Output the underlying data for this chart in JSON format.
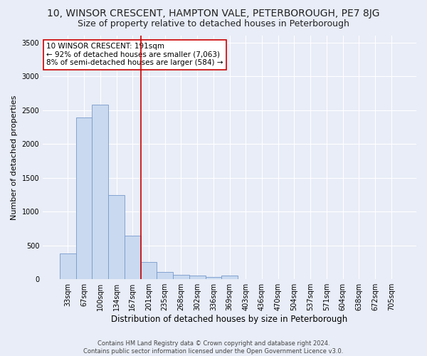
{
  "title": "10, WINSOR CRESCENT, HAMPTON VALE, PETERBOROUGH, PE7 8JG",
  "subtitle": "Size of property relative to detached houses in Peterborough",
  "xlabel": "Distribution of detached houses by size in Peterborough",
  "ylabel": "Number of detached properties",
  "footer_line1": "Contains HM Land Registry data © Crown copyright and database right 2024.",
  "footer_line2": "Contains public sector information licensed under the Open Government Licence v3.0.",
  "categories": [
    "33sqm",
    "67sqm",
    "100sqm",
    "134sqm",
    "167sqm",
    "201sqm",
    "235sqm",
    "268sqm",
    "302sqm",
    "336sqm",
    "369sqm",
    "403sqm",
    "436sqm",
    "470sqm",
    "504sqm",
    "537sqm",
    "571sqm",
    "604sqm",
    "638sqm",
    "672sqm",
    "705sqm"
  ],
  "values": [
    380,
    2390,
    2580,
    1240,
    640,
    250,
    105,
    65,
    60,
    35,
    55,
    0,
    0,
    0,
    0,
    0,
    0,
    0,
    0,
    0,
    0
  ],
  "bar_color": "#c9d9ef",
  "bar_edge_color": "#7799cc",
  "vline_color": "#cc0000",
  "vline_pos": 4.5,
  "annotation_line1": "10 WINSOR CRESCENT: 191sqm",
  "annotation_line2": "← 92% of detached houses are smaller (7,063)",
  "annotation_line3": "8% of semi-detached houses are larger (584) →",
  "annotation_box_facecolor": "#ffffff",
  "annotation_box_edgecolor": "#cc0000",
  "ylim": [
    0,
    3600
  ],
  "yticks": [
    0,
    500,
    1000,
    1500,
    2000,
    2500,
    3000,
    3500
  ],
  "bg_color": "#e8edf7",
  "plot_bg_color": "#e8edf7",
  "grid_color": "#ffffff",
  "title_fontsize": 10,
  "subtitle_fontsize": 9,
  "tick_fontsize": 7,
  "ylabel_fontsize": 8,
  "xlabel_fontsize": 8.5,
  "annotation_fontsize": 7.5,
  "footer_fontsize": 6
}
